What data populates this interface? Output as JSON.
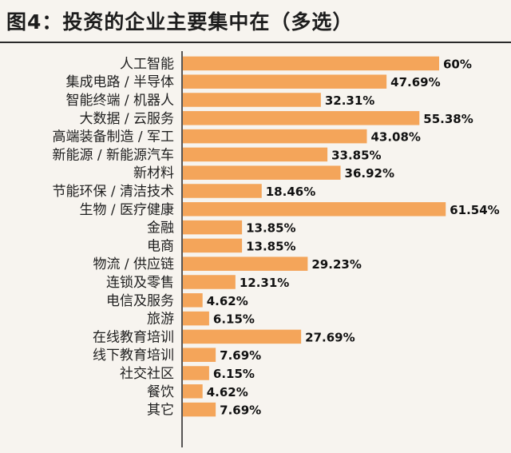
{
  "title": "图4：投资的企业主要集中在（多选）",
  "chart_data": {
    "type": "bar",
    "orientation": "horizontal",
    "title": "图4：投资的企业主要集中在（多选）",
    "categories": [
      "人工智能",
      "集成电路 / 半导体",
      "智能终端 / 机器人",
      "大数据 / 云服务",
      "高端装备制造 / 军工",
      "新能源 / 新能源汽车",
      "新材料",
      "节能环保 / 清洁技术",
      "生物 / 医疗健康",
      "金融",
      "电商",
      "物流 / 供应链",
      "连锁及零售",
      "电信及服务",
      "旅游",
      "在线教育培训",
      "线下教育培训",
      "社交社区",
      "餐饮",
      "其它"
    ],
    "values": [
      60,
      47.69,
      32.31,
      55.38,
      43.08,
      33.85,
      36.92,
      18.46,
      61.54,
      13.85,
      13.85,
      29.23,
      12.31,
      4.62,
      6.15,
      27.69,
      7.69,
      6.15,
      4.62,
      7.69
    ],
    "labels": [
      "60%",
      "47.69%",
      "32.31%",
      "55.38%",
      "43.08%",
      "33.85%",
      "36.92%",
      "18.46%",
      "61.54%",
      "13.85%",
      "13.85%",
      "29.23%",
      "12.31%",
      "4.62%",
      "6.15%",
      "27.69%",
      "7.69%",
      "6.15%",
      "4.62%",
      "7.69%"
    ],
    "xlabel": "",
    "ylabel": "",
    "grid": false,
    "bar_color": "#f4a55a"
  }
}
